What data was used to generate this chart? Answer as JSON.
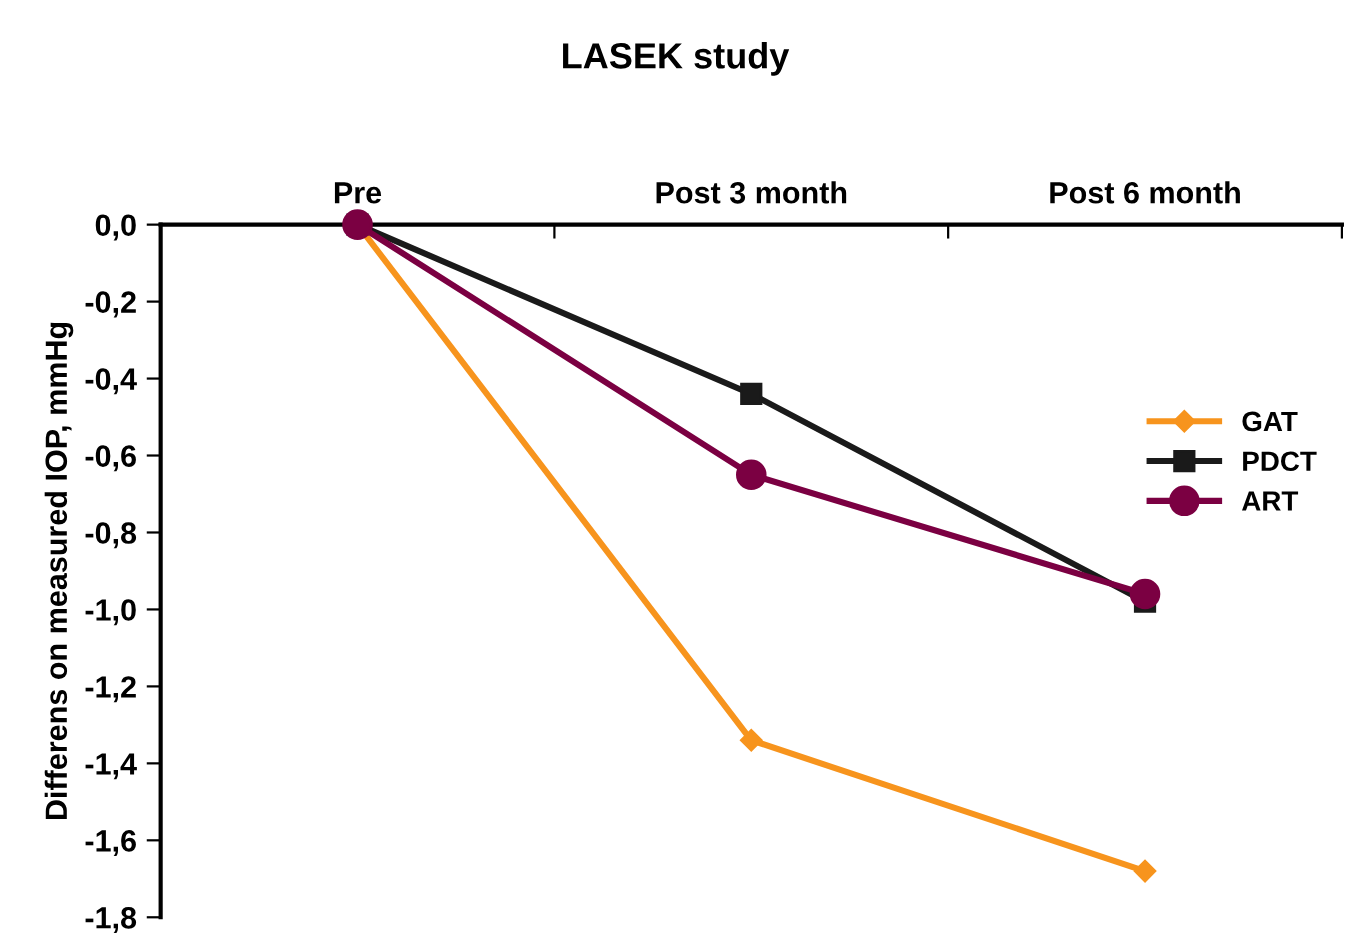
{
  "chart_data": {
    "type": "line",
    "title": "LASEK study",
    "ylabel": "Differens on measured IOP, mmHg",
    "categories": [
      "Pre",
      "Post 3 month",
      "Post 6 month"
    ],
    "series": [
      {
        "name": "GAT",
        "color": "#f7941d",
        "marker": "diamond",
        "values": [
          0,
          -1.34,
          -1.68
        ]
      },
      {
        "name": "PDCT",
        "color": "#1a1a1a",
        "marker": "square",
        "values": [
          0,
          -0.44,
          -0.98
        ]
      },
      {
        "name": "ART",
        "color": "#7b0042",
        "marker": "circle",
        "values": [
          0,
          -0.65,
          -0.96
        ]
      }
    ],
    "ylim": [
      -1.8,
      0
    ],
    "yticks": [
      {
        "value": 0,
        "label": "0,0"
      },
      {
        "value": -0.2,
        "label": "-0,2"
      },
      {
        "value": -0.4,
        "label": "-0,4"
      },
      {
        "value": -0.6,
        "label": "-0,6"
      },
      {
        "value": -0.8,
        "label": "-0,8"
      },
      {
        "value": -1.0,
        "label": "-1,0"
      },
      {
        "value": -1.2,
        "label": "-1,2"
      },
      {
        "value": -1.4,
        "label": "-1,4"
      },
      {
        "value": -1.6,
        "label": "-1,6"
      },
      {
        "value": -1.8,
        "label": "-1,8"
      }
    ],
    "grid": false,
    "legend": "right",
    "line_style": "solid"
  }
}
